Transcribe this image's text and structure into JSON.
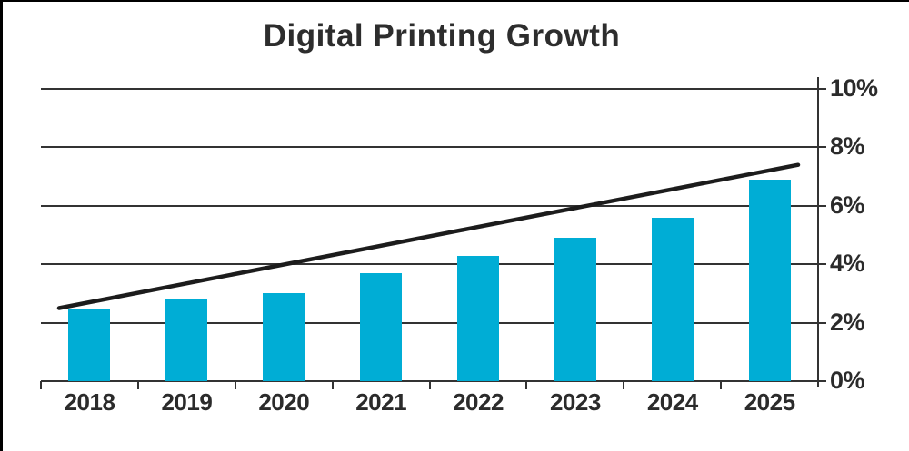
{
  "page": {
    "background": "#ffffff",
    "frame_color": "#000000"
  },
  "chart_data": {
    "type": "bar",
    "title": "Digital Printing Growth",
    "categories": [
      "2018",
      "2019",
      "2020",
      "2021",
      "2022",
      "2023",
      "2024",
      "2025"
    ],
    "series": [
      {
        "name": "growth-bars",
        "type": "bar",
        "values": [
          2.5,
          2.8,
          3.0,
          3.7,
          4.3,
          4.9,
          5.6,
          6.9
        ]
      },
      {
        "name": "trend-line",
        "type": "line",
        "values": [
          2.5,
          7.4
        ]
      }
    ],
    "xlabel": "",
    "ylabel": "",
    "ylim": [
      0,
      10
    ],
    "y_axis_side": "right",
    "y_ticks": [
      {
        "value": 10,
        "label": "10%"
      },
      {
        "value": 8,
        "label": "8%"
      },
      {
        "value": 6,
        "label": "6%"
      },
      {
        "value": 4,
        "label": "4%"
      },
      {
        "value": 2,
        "label": "2%"
      },
      {
        "value": 0,
        "label": "0%"
      }
    ],
    "grid": true,
    "legend": false,
    "colors": {
      "bar": "#00ADD5",
      "trend_line": "#1c1c1c",
      "grid": "#333333",
      "axis": "#333333",
      "text": "#2b2b2b",
      "title": "#2d2d2d"
    }
  }
}
